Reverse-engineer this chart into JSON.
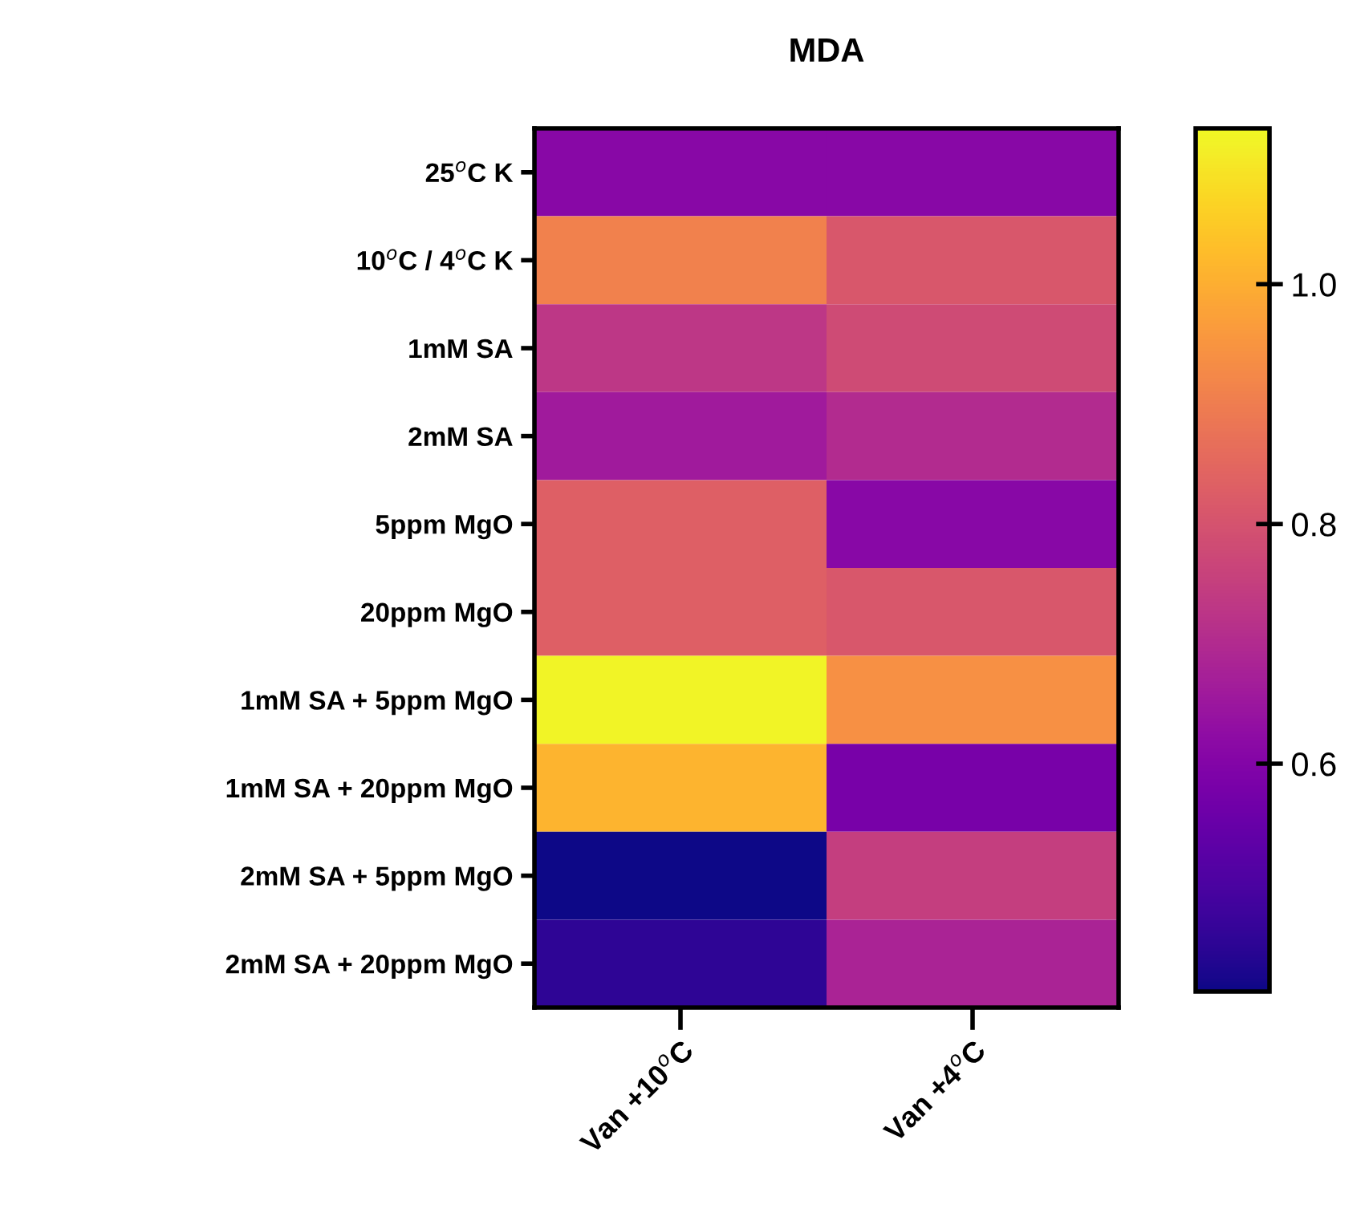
{
  "chart_data": {
    "type": "heatmap",
    "title": "MDA",
    "categories": [
      "Van +10$^{o}$C",
      "Van +4$^{o}$C"
    ],
    "y_categories": [
      "25$^{o}$C K",
      "10$^{o}$C / 4$^{o}$C K",
      "1mM SA",
      "2mM SA",
      "5ppm MgO",
      "20ppm MgO",
      "1mM SA + 5ppm MgO",
      "1mM SA + 20ppm MgO",
      "2mM SA + 5ppm MgO",
      "2mM SA + 20ppm MgO"
    ],
    "cells": [
      [
        0.61,
        0.61
      ],
      [
        0.91,
        0.81
      ],
      [
        0.73,
        0.78
      ],
      [
        0.66,
        0.7
      ],
      [
        0.83,
        0.61
      ],
      [
        0.83,
        0.81
      ],
      [
        1.12,
        0.94
      ],
      [
        1.01,
        0.58
      ],
      [
        0.41,
        0.75
      ],
      [
        0.45,
        0.68
      ]
    ],
    "clim": [
      0.41,
      1.13
    ],
    "cticks": [
      {
        "value": 0.6,
        "label": "0.6"
      },
      {
        "value": 0.8,
        "label": "0.8"
      },
      {
        "value": 1.0,
        "label": "1.0"
      }
    ]
  }
}
